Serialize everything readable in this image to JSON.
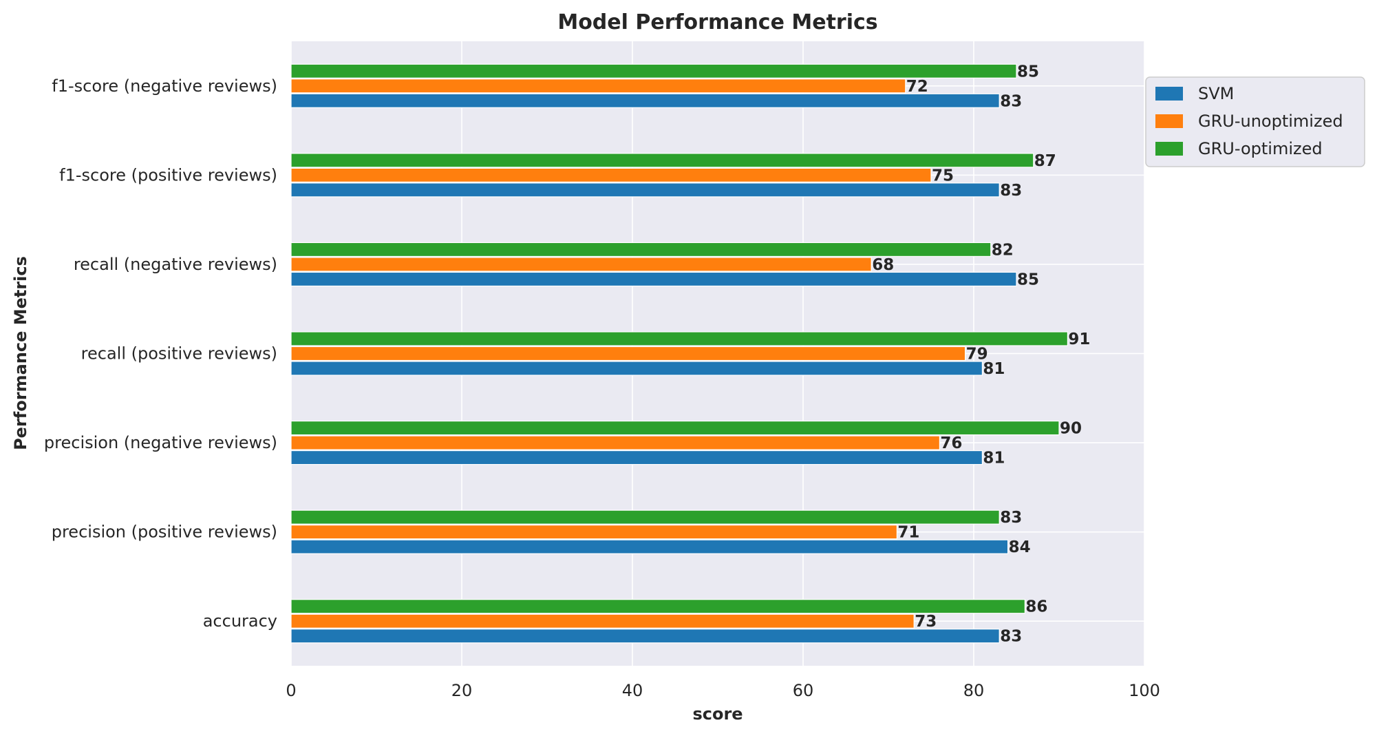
{
  "chart_data": {
    "type": "bar",
    "orientation": "horizontal",
    "title": "Model Performance Metrics",
    "xlabel": "score",
    "ylabel": "Performance Metrics",
    "xlim": [
      0,
      100
    ],
    "xticks": [
      0,
      20,
      40,
      60,
      80,
      100
    ],
    "grid": true,
    "legend_position": "right, outside top",
    "categories": [
      "accuracy",
      "precision (positive reviews)",
      "precision (negative reviews)",
      "recall (positive reviews)",
      "recall (negative reviews)",
      "f1-score (positive reviews)",
      "f1-score (negative reviews)"
    ],
    "series": [
      {
        "name": "SVM",
        "color": "#1f77b4",
        "values": [
          83,
          84,
          81,
          81,
          85,
          83,
          83
        ]
      },
      {
        "name": "GRU-unoptimized",
        "color": "#ff7f0e",
        "values": [
          73,
          71,
          76,
          79,
          68,
          75,
          72
        ]
      },
      {
        "name": "GRU-optimized",
        "color": "#2ca02c",
        "values": [
          86,
          83,
          90,
          91,
          82,
          87,
          85
        ]
      }
    ],
    "background_color": "#eaeaf2",
    "grid_color": "#ffffff"
  }
}
